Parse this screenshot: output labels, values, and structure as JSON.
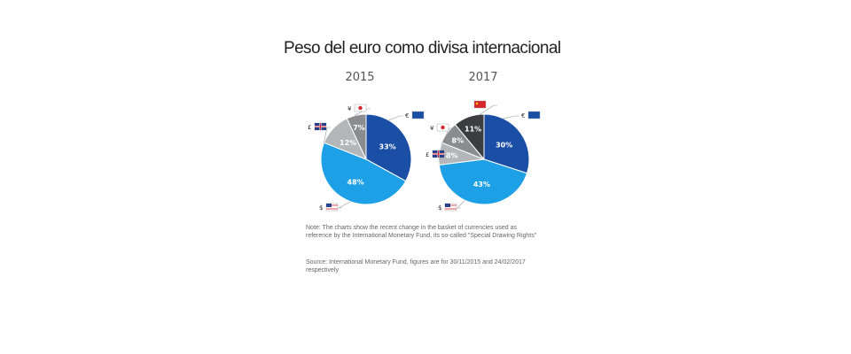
{
  "title": "Peso del euro como divisa internacional",
  "chart_data": [
    {
      "type": "pie",
      "title": "2015",
      "slices": [
        {
          "currency": "€",
          "value": 33,
          "label": "33%",
          "color": "#1b4fa6"
        },
        {
          "currency": "$",
          "value": 48,
          "label": "48%",
          "color": "#1ea0e6"
        },
        {
          "currency": "£",
          "value": 12,
          "label": "12%",
          "color": "#b4b6ba"
        },
        {
          "currency": "¥",
          "value": 7,
          "label": "7%",
          "color": "#8a8c90"
        }
      ]
    },
    {
      "type": "pie",
      "title": "2017",
      "slices": [
        {
          "currency": "€",
          "value": 30,
          "label": "30%",
          "color": "#1b4fa6"
        },
        {
          "currency": "$",
          "value": 43,
          "label": "43%",
          "color": "#1ea0e6"
        },
        {
          "currency": "£",
          "value": 8,
          "label": "8%",
          "color": "#b4b6ba"
        },
        {
          "currency": "¥",
          "value": 8,
          "label": "8%",
          "color": "#8a8c90"
        },
        {
          "currency": "",
          "value": 11,
          "label": "11%",
          "color": "#3c3d40"
        }
      ]
    }
  ],
  "note": "Note: The charts show the recent change in the basket of currencies used as reference by the International Monetary Fund, its so-called \"Special Drawing Rights\"",
  "source": "Source: International Monetary Fund, figures are for 30/11/2015 and 24/02/2017 respectively"
}
